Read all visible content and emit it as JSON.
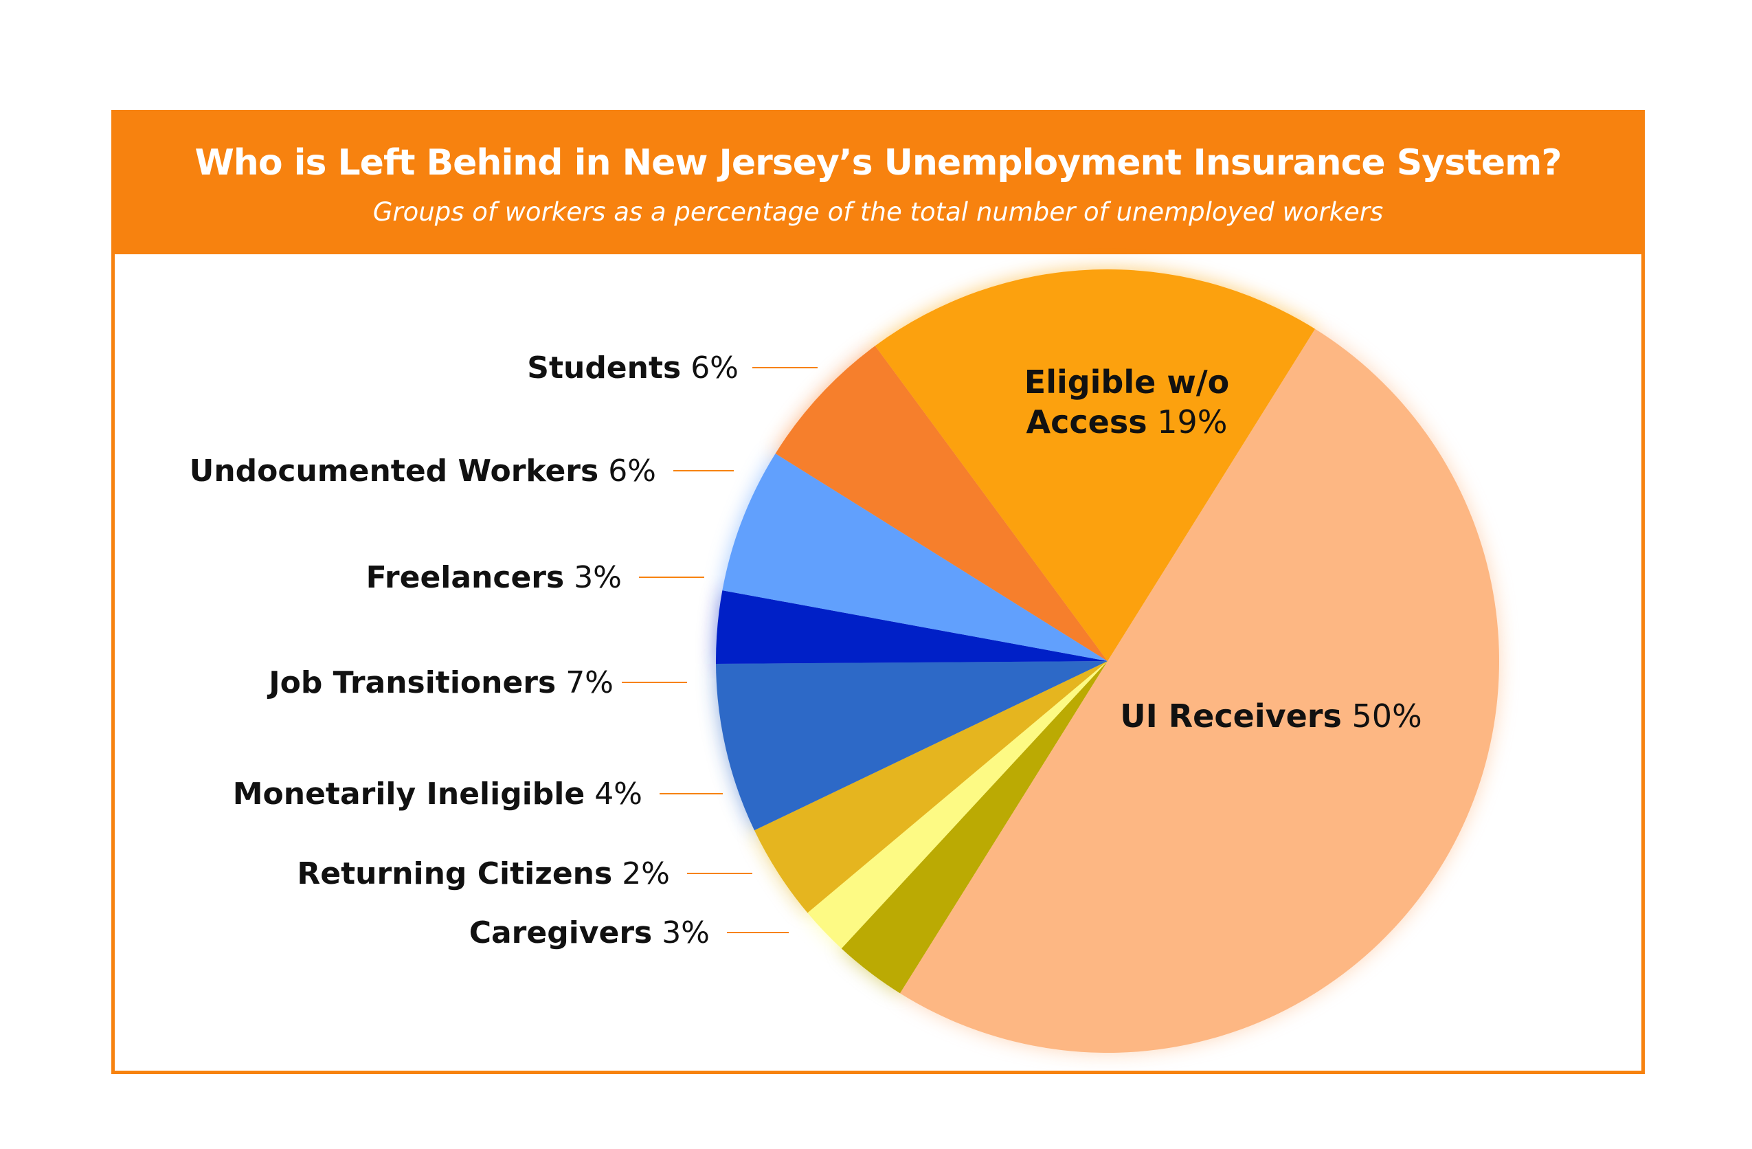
{
  "header": {
    "title": "Who is Left Behind in New Jersey’s Unemployment Insurance System?",
    "subtitle": "Groups of workers as a percentage of the total number of unemployed workers"
  },
  "chart_data": {
    "type": "pie",
    "title": "Who is Left Behind in New Jersey’s Unemployment Insurance System?",
    "subtitle": "Groups of workers as a percentage of the total number of unemployed workers",
    "unit": "%",
    "slices": [
      {
        "label": "UI Receivers",
        "value_label": "50%",
        "value": 50,
        "color": "#fdb783"
      },
      {
        "label": "Caregivers",
        "value_label": "3%",
        "value": 3,
        "color": "#bbaa03"
      },
      {
        "label": "Returning Citizens",
        "value_label": "2%",
        "value": 2,
        "color": "#fdfa84"
      },
      {
        "label": "Monetarily Ineligible",
        "value_label": "4%",
        "value": 4,
        "color": "#e5b51f"
      },
      {
        "label": "Job Transitioners",
        "value_label": "7%",
        "value": 7,
        "color": "#2d69c7"
      },
      {
        "label": "Freelancers",
        "value_label": "3%",
        "value": 3,
        "color": "#0020c7"
      },
      {
        "label": "Undocumented Workers",
        "value_label": "6%",
        "value": 6,
        "color": "#61a0fd"
      },
      {
        "label": "Students",
        "value_label": "6%",
        "value": 6,
        "color": "#f67f2c"
      },
      {
        "label": "Eligible w/o Access",
        "label_lines": [
          "Eligible w/o",
          "Access"
        ],
        "value_label": "19%",
        "value": 19,
        "color": "#fca10e"
      }
    ],
    "leader_line_color": "#f7820f",
    "legend": "none"
  }
}
